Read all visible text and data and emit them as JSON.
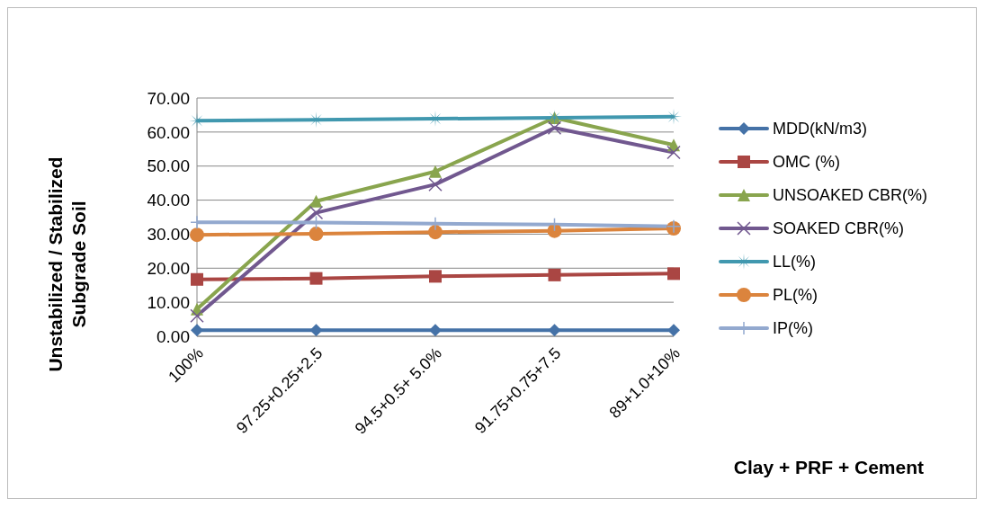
{
  "chart_data": {
    "type": "line",
    "ylabel": "Unstabilized / Stabilized Subgrade  Soil",
    "xlabel": "Clay + PRF + Cement",
    "categories": [
      "100%",
      "97.25+0.25+2.5",
      "94.5+0.5+ 5.0%",
      "91.75+0.75+7.5",
      "89+1.0+10%"
    ],
    "series": [
      {
        "name": "MDD(kN/m3)",
        "color": "#4572a7",
        "marker": "diamond",
        "values": [
          1.8,
          1.8,
          1.8,
          1.8,
          1.8
        ]
      },
      {
        "name": "OMC (%)",
        "color": "#aa4643",
        "marker": "square",
        "values": [
          16.7,
          17.0,
          17.6,
          18.0,
          18.4
        ]
      },
      {
        "name": "UNSOAKED CBR(%)",
        "color": "#89a54e",
        "marker": "triangle",
        "values": [
          8.0,
          39.7,
          48.4,
          64.2,
          56.2
        ]
      },
      {
        "name": "SOAKED CBR(%)",
        "color": "#71588f",
        "marker": "cross",
        "values": [
          6.0,
          36.3,
          44.6,
          61.2,
          54.0
        ]
      },
      {
        "name": "LL(%)",
        "color": "#4198af",
        "marker": "star",
        "values": [
          63.3,
          63.6,
          63.9,
          64.2,
          64.5
        ]
      },
      {
        "name": "PL(%)",
        "color": "#db843d",
        "marker": "circle",
        "values": [
          29.8,
          30.1,
          30.6,
          31.0,
          31.7
        ]
      },
      {
        "name": "IP(%)",
        "color": "#93a9cf",
        "marker": "plus",
        "values": [
          33.5,
          33.4,
          33.1,
          32.8,
          32.3
        ]
      }
    ],
    "ylim": [
      0,
      70
    ],
    "yticks": [
      {
        "value": 0,
        "label": "0.00"
      },
      {
        "value": 10,
        "label": "10.00"
      },
      {
        "value": 20,
        "label": "20.00"
      },
      {
        "value": 30,
        "label": "30.00"
      },
      {
        "value": 40,
        "label": "40.00"
      },
      {
        "value": 50,
        "label": "50.00"
      },
      {
        "value": 60,
        "label": "60.00"
      },
      {
        "value": 70,
        "label": "70.00"
      }
    ],
    "grid": "y",
    "legend": "right",
    "line_style": "solid"
  }
}
